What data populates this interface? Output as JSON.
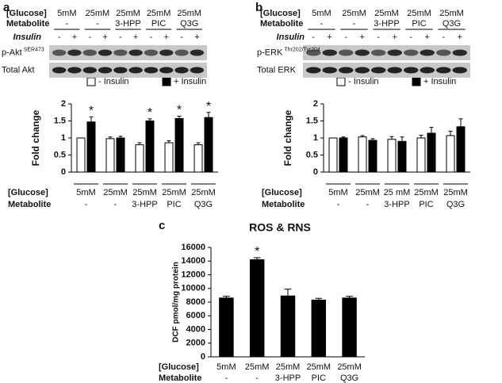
{
  "chart_data": [
    {
      "panel": "a",
      "type": "bar",
      "y_label": "Fold change",
      "glucose_label": "[Glucose]",
      "metabolite_label": "Metabolite",
      "categories": [
        "5mM",
        "25mM",
        "25mM",
        "25mM",
        "25mM"
      ],
      "metabolites": [
        "-",
        "-",
        "3-HPP",
        "PIC",
        "Q3G"
      ],
      "ylim": [
        0,
        2
      ],
      "yticks": [
        0,
        0.5,
        1,
        1.5,
        2
      ],
      "legend": "top",
      "series": [
        {
          "name": "- Insulin",
          "color": "#ffffff",
          "values": [
            1.0,
            0.98,
            0.8,
            0.86,
            0.8
          ],
          "errors": [
            0,
            0.05,
            0.06,
            0.06,
            0.06
          ]
        },
        {
          "name": "+ Insulin",
          "color": "#000000",
          "values": [
            1.47,
            1.0,
            1.5,
            1.57,
            1.6
          ],
          "errors": [
            0.15,
            0.05,
            0.06,
            0.07,
            0.15
          ],
          "significance": [
            "*",
            null,
            "*",
            "*",
            "*"
          ]
        }
      ],
      "blot": {
        "glucose": [
          "5mM",
          "25mM",
          "25mM",
          "25mM",
          "25mM"
        ],
        "metabolites": [
          "-",
          "-",
          "3-HPP",
          "PIC",
          "Q3G"
        ],
        "insulin_label": "Insulin",
        "insulin": [
          "-",
          "+"
        ],
        "rows": [
          {
            "label": "p-Akt",
            "sup": "SER473"
          },
          {
            "label": "Total Akt"
          }
        ]
      }
    },
    {
      "panel": "b",
      "type": "bar",
      "y_label": "Fold change",
      "glucose_label": "[Glucose]",
      "metabolite_label": "Metabolite",
      "categories": [
        "5mM",
        "25mM",
        "25 mM",
        "25mM",
        "25mM"
      ],
      "metabolites": [
        "-",
        "-",
        "3-HPP",
        "PIC",
        "Q3G"
      ],
      "ylim": [
        0,
        2
      ],
      "yticks": [
        0,
        0.5,
        1,
        1.5,
        2
      ],
      "legend": "top",
      "series": [
        {
          "name": "- Insulin",
          "color": "#ffffff",
          "values": [
            1.0,
            1.03,
            0.96,
            1.0,
            1.07
          ],
          "errors": [
            0,
            0.04,
            0.08,
            0.08,
            0.13
          ]
        },
        {
          "name": "+ Insulin",
          "color": "#000000",
          "values": [
            1.0,
            0.93,
            0.9,
            1.14,
            1.33
          ],
          "errors": [
            0.03,
            0.05,
            0.13,
            0.17,
            0.23
          ]
        }
      ],
      "blot": {
        "glucose": [
          "5mM",
          "25mM",
          "25mM",
          "25mM",
          "25mM"
        ],
        "metabolites": [
          "-",
          "-",
          "3-HPP",
          "PIC",
          "Q3G"
        ],
        "insulin_label": "Insulin",
        "insulin": [
          "-",
          "+"
        ],
        "rows": [
          {
            "label": "p-ERK",
            "sup": "Thr202/Tyr204"
          },
          {
            "label": "Total ERK"
          }
        ]
      }
    },
    {
      "panel": "c",
      "type": "bar",
      "title": "ROS & RNS",
      "y_label": "DCF pmol/mg protein",
      "glucose_label": "[Glucose]",
      "metabolite_label": "Metabolite",
      "categories": [
        "5mM",
        "25mM",
        "25mM",
        "25mM",
        "25mM"
      ],
      "metabolites": [
        "-",
        "-",
        "3-HPP",
        "PIC",
        "Q3G"
      ],
      "ylim": [
        0,
        16000
      ],
      "yticks": [
        0,
        2000,
        4000,
        6000,
        8000,
        10000,
        12000,
        14000,
        16000
      ],
      "color": "#000000",
      "values": [
        8600,
        14200,
        8900,
        8300,
        8600
      ],
      "errors": [
        250,
        300,
        1000,
        250,
        250
      ],
      "significance": [
        null,
        "*",
        null,
        null,
        null
      ]
    }
  ]
}
